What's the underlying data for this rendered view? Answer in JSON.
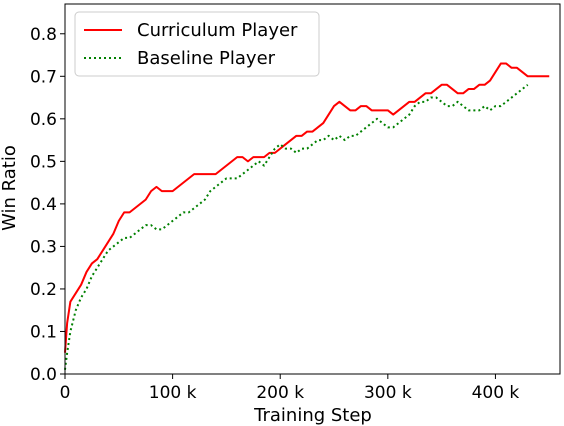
{
  "chart_data": {
    "type": "line",
    "title": "",
    "xlabel": "Training Step",
    "ylabel": "Win Ratio",
    "xlim": [
      0,
      460000
    ],
    "ylim": [
      0.0,
      0.87
    ],
    "x_ticks": [
      {
        "value": 0,
        "label": "0"
      },
      {
        "value": 100000,
        "label": "100 k"
      },
      {
        "value": 200000,
        "label": "200 k"
      },
      {
        "value": 300000,
        "label": "300 k"
      },
      {
        "value": 400000,
        "label": "400 k"
      }
    ],
    "y_ticks": [
      {
        "value": 0.0,
        "label": "0.0"
      },
      {
        "value": 0.1,
        "label": "0.1"
      },
      {
        "value": 0.2,
        "label": "0.2"
      },
      {
        "value": 0.3,
        "label": "0.3"
      },
      {
        "value": 0.4,
        "label": "0.4"
      },
      {
        "value": 0.5,
        "label": "0.5"
      },
      {
        "value": 0.6,
        "label": "0.6"
      },
      {
        "value": 0.7,
        "label": "0.7"
      },
      {
        "value": 0.8,
        "label": "0.8"
      }
    ],
    "grid": false,
    "legend_position": "top-left",
    "series": [
      {
        "name": "Curriculum Player",
        "color": "#ff0000",
        "style": "solid",
        "x": [
          0,
          2000,
          5000,
          10000,
          15000,
          20000,
          25000,
          30000,
          35000,
          40000,
          45000,
          50000,
          55000,
          60000,
          65000,
          70000,
          75000,
          80000,
          85000,
          90000,
          95000,
          100000,
          105000,
          110000,
          115000,
          120000,
          125000,
          130000,
          135000,
          140000,
          145000,
          150000,
          155000,
          160000,
          165000,
          170000,
          175000,
          180000,
          185000,
          190000,
          195000,
          200000,
          205000,
          210000,
          215000,
          220000,
          225000,
          230000,
          235000,
          240000,
          245000,
          250000,
          255000,
          260000,
          265000,
          270000,
          275000,
          280000,
          285000,
          290000,
          295000,
          300000,
          305000,
          310000,
          315000,
          320000,
          325000,
          330000,
          335000,
          340000,
          345000,
          350000,
          355000,
          360000,
          365000,
          370000,
          375000,
          380000,
          385000,
          390000,
          395000,
          400000,
          405000,
          410000,
          415000,
          420000,
          425000,
          430000,
          435000,
          440000,
          445000,
          450000
        ],
        "values": [
          0.05,
          0.12,
          0.17,
          0.19,
          0.21,
          0.24,
          0.26,
          0.27,
          0.29,
          0.31,
          0.33,
          0.36,
          0.38,
          0.38,
          0.39,
          0.4,
          0.41,
          0.43,
          0.44,
          0.43,
          0.43,
          0.43,
          0.44,
          0.45,
          0.46,
          0.47,
          0.47,
          0.47,
          0.47,
          0.47,
          0.48,
          0.49,
          0.5,
          0.51,
          0.51,
          0.5,
          0.51,
          0.51,
          0.51,
          0.52,
          0.52,
          0.53,
          0.54,
          0.55,
          0.56,
          0.56,
          0.57,
          0.57,
          0.58,
          0.59,
          0.61,
          0.63,
          0.64,
          0.63,
          0.62,
          0.62,
          0.63,
          0.63,
          0.62,
          0.62,
          0.62,
          0.62,
          0.61,
          0.62,
          0.63,
          0.64,
          0.64,
          0.65,
          0.66,
          0.66,
          0.67,
          0.68,
          0.68,
          0.67,
          0.66,
          0.66,
          0.67,
          0.67,
          0.68,
          0.68,
          0.69,
          0.71,
          0.73,
          0.73,
          0.72,
          0.72,
          0.71,
          0.7,
          0.7,
          0.7,
          0.7,
          0.7
        ]
      },
      {
        "name": "Baseline Player",
        "color": "#008000",
        "style": "dotted",
        "x": [
          0,
          2000,
          5000,
          10000,
          15000,
          20000,
          25000,
          30000,
          35000,
          40000,
          45000,
          50000,
          55000,
          60000,
          65000,
          70000,
          75000,
          80000,
          85000,
          90000,
          95000,
          100000,
          105000,
          110000,
          115000,
          120000,
          125000,
          130000,
          135000,
          140000,
          145000,
          150000,
          155000,
          160000,
          165000,
          170000,
          175000,
          180000,
          185000,
          190000,
          195000,
          200000,
          205000,
          210000,
          215000,
          220000,
          225000,
          230000,
          235000,
          240000,
          245000,
          250000,
          255000,
          260000,
          265000,
          270000,
          275000,
          280000,
          285000,
          290000,
          295000,
          300000,
          305000,
          310000,
          315000,
          320000,
          325000,
          330000,
          335000,
          340000,
          345000,
          350000,
          355000,
          360000,
          365000,
          370000,
          375000,
          380000,
          385000,
          390000,
          395000,
          400000,
          405000,
          410000,
          415000,
          420000,
          425000,
          430000
        ],
        "values": [
          0.01,
          0.05,
          0.1,
          0.15,
          0.18,
          0.2,
          0.23,
          0.25,
          0.27,
          0.29,
          0.3,
          0.31,
          0.32,
          0.32,
          0.33,
          0.34,
          0.35,
          0.35,
          0.34,
          0.34,
          0.35,
          0.36,
          0.37,
          0.38,
          0.38,
          0.39,
          0.4,
          0.41,
          0.43,
          0.44,
          0.45,
          0.46,
          0.46,
          0.46,
          0.47,
          0.48,
          0.49,
          0.5,
          0.49,
          0.51,
          0.53,
          0.54,
          0.53,
          0.53,
          0.52,
          0.53,
          0.53,
          0.54,
          0.55,
          0.55,
          0.56,
          0.55,
          0.56,
          0.55,
          0.56,
          0.56,
          0.57,
          0.58,
          0.59,
          0.6,
          0.59,
          0.58,
          0.58,
          0.59,
          0.6,
          0.61,
          0.63,
          0.64,
          0.64,
          0.65,
          0.65,
          0.64,
          0.63,
          0.63,
          0.64,
          0.63,
          0.62,
          0.62,
          0.62,
          0.63,
          0.62,
          0.63,
          0.63,
          0.64,
          0.65,
          0.66,
          0.67,
          0.68
        ]
      }
    ]
  }
}
